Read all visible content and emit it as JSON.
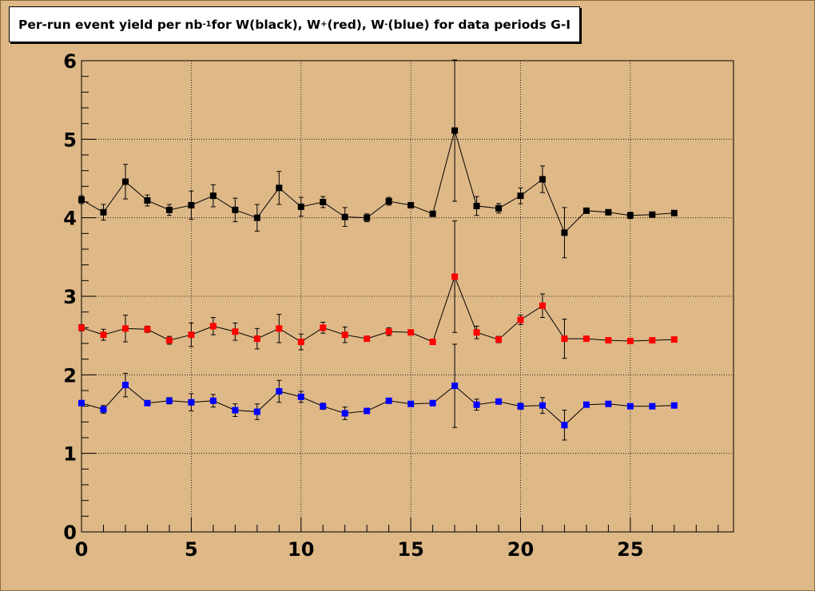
{
  "title": {
    "prefix": "Per-run event yield per nb",
    "exp": "-1",
    "mid1": " for W(black), W",
    "sup_plus": "+",
    "mid2": "(red), W",
    "sup_minus": "-",
    "suffix": "(blue) for data periods G-I"
  },
  "chart_data": {
    "type": "scatter",
    "title": "Per-run event yield per nb^-1 for W(black), W+(red), W-(blue) for data periods G-I",
    "xlabel": "",
    "ylabel": "",
    "xlim": [
      0,
      29.7
    ],
    "ylim": [
      0,
      6
    ],
    "xticks": [
      0,
      5,
      10,
      15,
      20,
      25
    ],
    "yticks": [
      0,
      1,
      2,
      3,
      4,
      5,
      6
    ],
    "grid": true,
    "series": [
      {
        "name": "W",
        "color": "#000000",
        "x": [
          0,
          1,
          2,
          3,
          4,
          5,
          6,
          7,
          8,
          9,
          10,
          11,
          12,
          13,
          14,
          15,
          16,
          17,
          18,
          19,
          20,
          21,
          22,
          23,
          24,
          25,
          26,
          27
        ],
        "y": [
          4.23,
          4.07,
          4.46,
          4.22,
          4.1,
          4.16,
          4.28,
          4.1,
          4.0,
          4.38,
          4.14,
          4.2,
          4.01,
          4.0,
          4.21,
          4.16,
          4.05,
          5.11,
          4.15,
          4.12,
          4.28,
          4.49,
          3.81,
          4.09,
          4.07,
          4.03,
          4.04,
          4.06
        ],
        "err": [
          0.05,
          0.1,
          0.22,
          0.07,
          0.07,
          0.18,
          0.14,
          0.15,
          0.17,
          0.21,
          0.12,
          0.07,
          0.12,
          0.05,
          0.05,
          0.03,
          0.03,
          0.9,
          0.12,
          0.06,
          0.1,
          0.17,
          0.32,
          0.02,
          0.02,
          0.04,
          0.02,
          0.02
        ]
      },
      {
        "name": "W+",
        "color": "#ff0000",
        "x": [
          0,
          1,
          2,
          3,
          4,
          5,
          6,
          7,
          8,
          9,
          10,
          11,
          12,
          13,
          14,
          15,
          16,
          17,
          18,
          19,
          20,
          21,
          22,
          23,
          24,
          25,
          26,
          27
        ],
        "y": [
          2.6,
          2.51,
          2.59,
          2.58,
          2.44,
          2.51,
          2.62,
          2.55,
          2.46,
          2.59,
          2.42,
          2.6,
          2.51,
          2.46,
          2.55,
          2.54,
          2.42,
          3.25,
          2.54,
          2.45,
          2.7,
          2.88,
          2.46,
          2.46,
          2.44,
          2.43,
          2.44,
          2.45
        ],
        "err": [
          0.04,
          0.07,
          0.17,
          0.04,
          0.05,
          0.15,
          0.11,
          0.11,
          0.13,
          0.18,
          0.1,
          0.07,
          0.1,
          0.03,
          0.05,
          0.02,
          0.02,
          0.71,
          0.08,
          0.04,
          0.06,
          0.15,
          0.25,
          0.02,
          0.02,
          0.03,
          0.02,
          0.02
        ]
      },
      {
        "name": "W-",
        "color": "#0000ff",
        "x": [
          0,
          1,
          2,
          3,
          4,
          5,
          6,
          7,
          8,
          9,
          10,
          11,
          12,
          13,
          14,
          15,
          16,
          17,
          18,
          19,
          20,
          21,
          22,
          23,
          24,
          25,
          26,
          27
        ],
        "y": [
          1.64,
          1.56,
          1.87,
          1.64,
          1.67,
          1.65,
          1.67,
          1.55,
          1.53,
          1.79,
          1.72,
          1.6,
          1.51,
          1.54,
          1.67,
          1.63,
          1.64,
          1.86,
          1.62,
          1.66,
          1.6,
          1.61,
          1.36,
          1.62,
          1.63,
          1.6,
          1.6,
          1.61
        ],
        "err": [
          0.03,
          0.05,
          0.15,
          0.03,
          0.04,
          0.11,
          0.08,
          0.08,
          0.1,
          0.14,
          0.07,
          0.04,
          0.08,
          0.03,
          0.03,
          0.02,
          0.02,
          0.53,
          0.07,
          0.03,
          0.04,
          0.1,
          0.19,
          0.02,
          0.02,
          0.02,
          0.02,
          0.02
        ]
      }
    ]
  }
}
